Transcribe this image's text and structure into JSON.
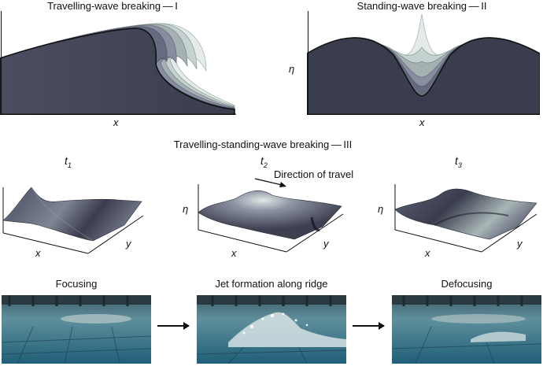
{
  "panel_I": {
    "title": "Travelling-wave breaking — I",
    "x_label": "x"
  },
  "panel_II": {
    "title": "Standing-wave breaking — II",
    "x_label": "x",
    "y_label": "η"
  },
  "panel_III": {
    "title": "Travelling-standing-wave breaking — III",
    "t1": "t",
    "t1_sub": "1",
    "t2": "t",
    "t2_sub": "2",
    "t3": "t",
    "t3_sub": "3",
    "direction": "Direction of travel",
    "x_label": "x",
    "y_label": "y",
    "eta_label": "η"
  },
  "photos": {
    "focusing": "Focusing",
    "jet": "Jet formation along ridge",
    "defocusing": "Defocusing"
  },
  "colors": {
    "wave_dark": "#3a3d4e",
    "wave_light": "#dfe7e4",
    "water": "#2e6e84"
  }
}
